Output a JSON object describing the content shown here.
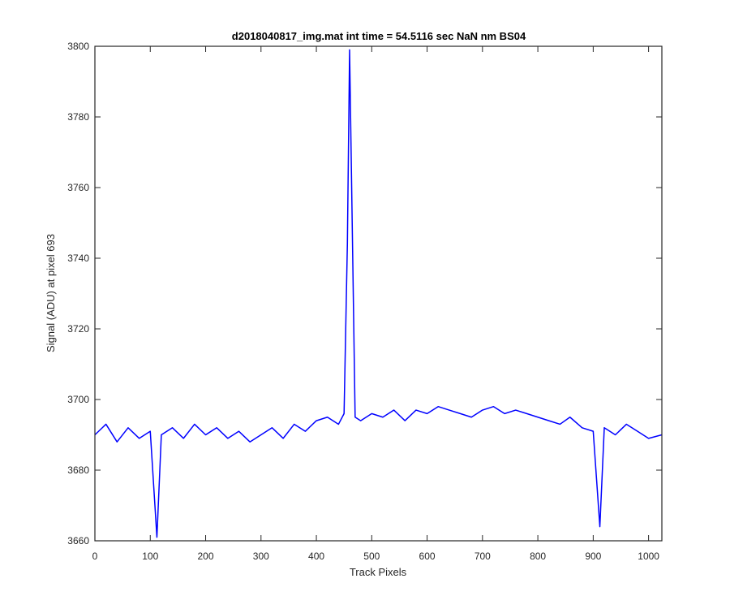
{
  "chart_data": {
    "type": "line",
    "title": "d2018040817_img.mat int time = 54.5116 sec  NaN nm BS04",
    "xlabel": "Track Pixels",
    "ylabel": "Signal (ADU) at pixel 693",
    "xlim": [
      0,
      1024
    ],
    "ylim": [
      3660,
      3800
    ],
    "xticks": [
      0,
      100,
      200,
      300,
      400,
      500,
      600,
      700,
      800,
      900,
      1000
    ],
    "xtick_labels": [
      "0",
      "100",
      "200",
      "300",
      "400",
      "500",
      "600",
      "700",
      "800",
      "900",
      "1000"
    ],
    "yticks": [
      3660,
      3680,
      3700,
      3720,
      3740,
      3760,
      3780,
      3800
    ],
    "ytick_labels": [
      "3660",
      "3680",
      "3700",
      "3720",
      "3740",
      "3760",
      "3780",
      "3800"
    ],
    "grid": false,
    "line_color": "#0000ff",
    "series": [
      {
        "x": [
          0,
          20,
          40,
          60,
          80,
          100,
          112,
          120,
          140,
          160,
          180,
          200,
          220,
          240,
          260,
          280,
          300,
          320,
          340,
          360,
          380,
          400,
          420,
          440,
          450,
          456,
          460,
          470,
          480,
          500,
          520,
          540,
          560,
          580,
          600,
          620,
          640,
          660,
          680,
          700,
          720,
          740,
          760,
          780,
          800,
          820,
          840,
          858,
          880,
          900,
          912,
          920,
          940,
          960,
          980,
          1000,
          1024
        ],
        "values": [
          3690,
          3693,
          3688,
          3692,
          3689,
          3691,
          3661,
          3690,
          3692,
          3689,
          3693,
          3690,
          3692,
          3689,
          3691,
          3688,
          3690,
          3692,
          3689,
          3693,
          3691,
          3694,
          3695,
          3693,
          3696,
          3744,
          3799,
          3695,
          3694,
          3696,
          3695,
          3697,
          3694,
          3697,
          3696,
          3698,
          3697,
          3696,
          3695,
          3697,
          3698,
          3696,
          3697,
          3696,
          3695,
          3694,
          3693,
          3695,
          3692,
          3691,
          3664,
          3692,
          3690,
          3693,
          3691,
          3689,
          3690
        ]
      }
    ]
  }
}
